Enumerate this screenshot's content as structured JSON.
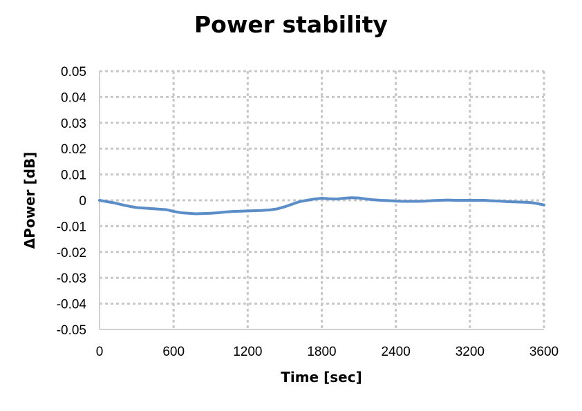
{
  "chart_data": {
    "type": "line",
    "title": "Power stability",
    "xlabel": "Time [sec]",
    "ylabel": "ΔPower [dB]",
    "xlim": [
      0,
      3600
    ],
    "ylim": [
      -0.05,
      0.05
    ],
    "x_ticks": [
      "0",
      "600",
      "1200",
      "1800",
      "2400",
      "3200",
      "3600"
    ],
    "y_ticks": [
      "0.05",
      "0.04",
      "0.03",
      "0.02",
      "0.01",
      "0",
      "-0.01",
      "-0.02",
      "-0.03",
      "-0.04",
      "-0.05"
    ],
    "grid": true,
    "legend": "none",
    "series_color": "#5b8ec9",
    "series": [
      {
        "x": [
          0,
          60,
          120,
          180,
          240,
          300,
          360,
          420,
          480,
          540,
          600,
          660,
          720,
          780,
          840,
          900,
          960,
          1020,
          1080,
          1140,
          1200,
          1260,
          1320,
          1380,
          1440,
          1500,
          1560,
          1620,
          1680,
          1740,
          1800,
          1860,
          1920,
          1980,
          2040,
          2100,
          2160,
          2220,
          2280,
          2340,
          2400,
          2460,
          2520,
          2580,
          2640,
          2700,
          2760,
          2820,
          2880,
          2940,
          3000,
          3060,
          3120,
          3180,
          3240,
          3300,
          3360,
          3420,
          3480,
          3540,
          3600
        ],
        "values": [
          0.0,
          -0.0005,
          -0.001,
          -0.0017,
          -0.0023,
          -0.0028,
          -0.003,
          -0.0032,
          -0.0034,
          -0.0036,
          -0.0043,
          -0.0048,
          -0.005,
          -0.0052,
          -0.0051,
          -0.005,
          -0.0048,
          -0.0045,
          -0.0043,
          -0.0042,
          -0.0041,
          -0.004,
          -0.0039,
          -0.0037,
          -0.0033,
          -0.0025,
          -0.0015,
          -0.0005,
          0.0,
          0.0005,
          0.0008,
          0.0006,
          0.0005,
          0.0008,
          0.001,
          0.0009,
          0.0005,
          0.0002,
          0.0,
          -0.0001,
          -0.0003,
          -0.0004,
          -0.0004,
          -0.0004,
          -0.0003,
          -0.0001,
          0.0,
          0.0001,
          0.0,
          0.0,
          0.0,
          0.0,
          0.0,
          -0.0002,
          -0.0003,
          -0.0005,
          -0.0006,
          -0.0007,
          -0.0008,
          -0.0012,
          -0.0018
        ]
      }
    ]
  }
}
